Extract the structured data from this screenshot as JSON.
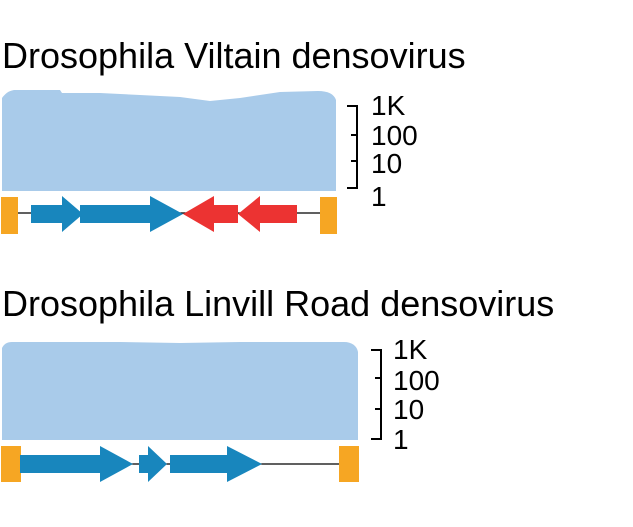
{
  "colors": {
    "coverage": "#a9cbea",
    "forward_orf": "#1886bd",
    "reverse_orf": "#ec3332",
    "terminal_repeat": "#f6a623",
    "backbone": "#000000"
  },
  "coverage_scale": {
    "type": "log",
    "ticks": [
      "1K",
      "100",
      "10",
      "1"
    ]
  },
  "genomes": [
    {
      "title": "Drosophila Viltain densovirus",
      "features": [
        {
          "type": "terminal-repeat",
          "end": "left"
        },
        {
          "type": "orf",
          "strand": "forward"
        },
        {
          "type": "orf",
          "strand": "forward"
        },
        {
          "type": "orf",
          "strand": "reverse"
        },
        {
          "type": "orf",
          "strand": "reverse"
        },
        {
          "type": "terminal-repeat",
          "end": "right"
        }
      ]
    },
    {
      "title": "Drosophila Linvill Road densovirus",
      "features": [
        {
          "type": "terminal-repeat",
          "end": "left"
        },
        {
          "type": "orf",
          "strand": "forward"
        },
        {
          "type": "orf",
          "strand": "forward"
        },
        {
          "type": "orf",
          "strand": "forward"
        },
        {
          "type": "terminal-repeat",
          "end": "right"
        }
      ]
    }
  ]
}
